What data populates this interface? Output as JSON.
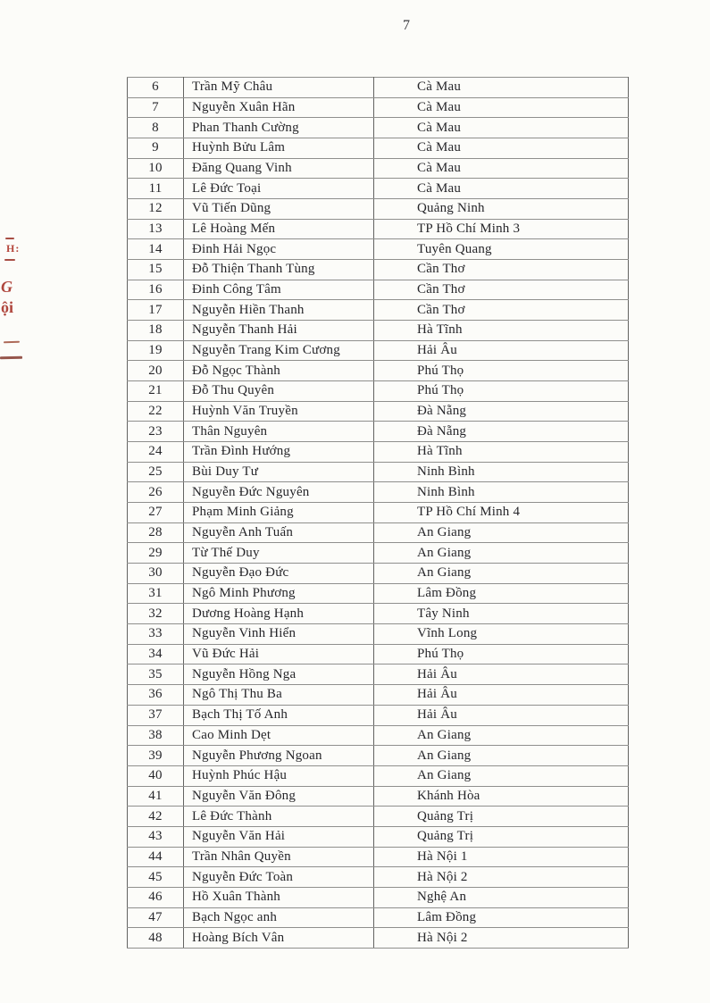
{
  "page": {
    "number": "7"
  },
  "stamp_fragments": [
    "H:",
    "G",
    "ội"
  ],
  "table": {
    "columns": [
      "no",
      "name",
      "unit"
    ],
    "rows": [
      {
        "no": "6",
        "name": "Trần Mỹ Châu",
        "unit": "Cà Mau"
      },
      {
        "no": "7",
        "name": "Nguyễn Xuân Hãn",
        "unit": "Cà Mau"
      },
      {
        "no": "8",
        "name": "Phan Thanh Cường",
        "unit": "Cà Mau"
      },
      {
        "no": "9",
        "name": "Huỳnh Bửu Lâm",
        "unit": "Cà Mau"
      },
      {
        "no": "10",
        "name": "Đăng Quang Vinh",
        "unit": "Cà Mau"
      },
      {
        "no": "11",
        "name": "Lê Đức Toại",
        "unit": "Cà Mau"
      },
      {
        "no": "12",
        "name": "Vũ Tiến Dũng",
        "unit": "Quảng Ninh"
      },
      {
        "no": "13",
        "name": "Lê Hoàng Mến",
        "unit": "TP Hồ Chí Minh 3"
      },
      {
        "no": "14",
        "name": "Đinh Hải Ngọc",
        "unit": "Tuyên Quang"
      },
      {
        "no": "15",
        "name": "Đỗ Thiện Thanh Tùng",
        "unit": "Cần Thơ"
      },
      {
        "no": "16",
        "name": "Đinh Công Tâm",
        "unit": "Cần Thơ"
      },
      {
        "no": "17",
        "name": "Nguyễn Hiền Thanh",
        "unit": "Cần Thơ"
      },
      {
        "no": "18",
        "name": "Nguyễn Thanh Hải",
        "unit": "Hà Tĩnh"
      },
      {
        "no": "19",
        "name": "Nguyễn Trang Kim Cương",
        "unit": "Hải Âu"
      },
      {
        "no": "20",
        "name": "Đỗ Ngọc Thành",
        "unit": "Phú Thọ"
      },
      {
        "no": "21",
        "name": "Đỗ Thu Quyên",
        "unit": "Phú Thọ"
      },
      {
        "no": "22",
        "name": "Huỳnh Văn Truyền",
        "unit": "Đà Nẵng"
      },
      {
        "no": "23",
        "name": "Thân Nguyên",
        "unit": "Đà Nẵng"
      },
      {
        "no": "24",
        "name": "Trần Đình Hướng",
        "unit": "Hà Tĩnh"
      },
      {
        "no": "25",
        "name": "Bùi Duy Tư",
        "unit": "Ninh Bình"
      },
      {
        "no": "26",
        "name": "Nguyễn Đức Nguyên",
        "unit": "Ninh Bình"
      },
      {
        "no": "27",
        "name": "Phạm Minh Giảng",
        "unit": "TP Hồ Chí Minh 4"
      },
      {
        "no": "28",
        "name": "Nguyễn Anh Tuấn",
        "unit": "An Giang"
      },
      {
        "no": "29",
        "name": "Từ Thế Duy",
        "unit": "An Giang"
      },
      {
        "no": "30",
        "name": "Nguyễn Đạo Đức",
        "unit": "An Giang"
      },
      {
        "no": "31",
        "name": "Ngô Minh Phương",
        "unit": "Lâm Đồng"
      },
      {
        "no": "32",
        "name": "Dương Hoàng Hạnh",
        "unit": "Tây Ninh"
      },
      {
        "no": "33",
        "name": "Nguyễn Vinh Hiển",
        "unit": "Vĩnh Long"
      },
      {
        "no": "34",
        "name": "Vũ Đức Hải",
        "unit": "Phú Thọ"
      },
      {
        "no": "35",
        "name": "Nguyễn Hồng Nga",
        "unit": "Hải Âu"
      },
      {
        "no": "36",
        "name": "Ngô Thị Thu Ba",
        "unit": "Hải Âu"
      },
      {
        "no": "37",
        "name": "Bạch Thị Tố Anh",
        "unit": "Hải Âu"
      },
      {
        "no": "38",
        "name": "Cao Minh Dẹt",
        "unit": "An Giang"
      },
      {
        "no": "39",
        "name": "Nguyễn Phương Ngoan",
        "unit": "An Giang"
      },
      {
        "no": "40",
        "name": "Huỳnh Phúc Hậu",
        "unit": "An Giang"
      },
      {
        "no": "41",
        "name": "Nguyễn Văn Đông",
        "unit": "Khánh Hòa"
      },
      {
        "no": "42",
        "name": "Lê Đức Thành",
        "unit": "Quảng Trị"
      },
      {
        "no": "43",
        "name": "Nguyễn Văn Hải",
        "unit": "Quảng Trị"
      },
      {
        "no": "44",
        "name": "Trần Nhân Quyền",
        "unit": "Hà Nội 1"
      },
      {
        "no": "45",
        "name": "Nguyễn Đức Toàn",
        "unit": "Hà Nội 2"
      },
      {
        "no": "46",
        "name": "Hồ Xuân Thành",
        "unit": "Nghệ An"
      },
      {
        "no": "47",
        "name": "Bạch Ngọc anh",
        "unit": "Lâm Đồng"
      },
      {
        "no": "48",
        "name": "Hoàng Bích Vân",
        "unit": "Hà Nội 2"
      }
    ]
  }
}
